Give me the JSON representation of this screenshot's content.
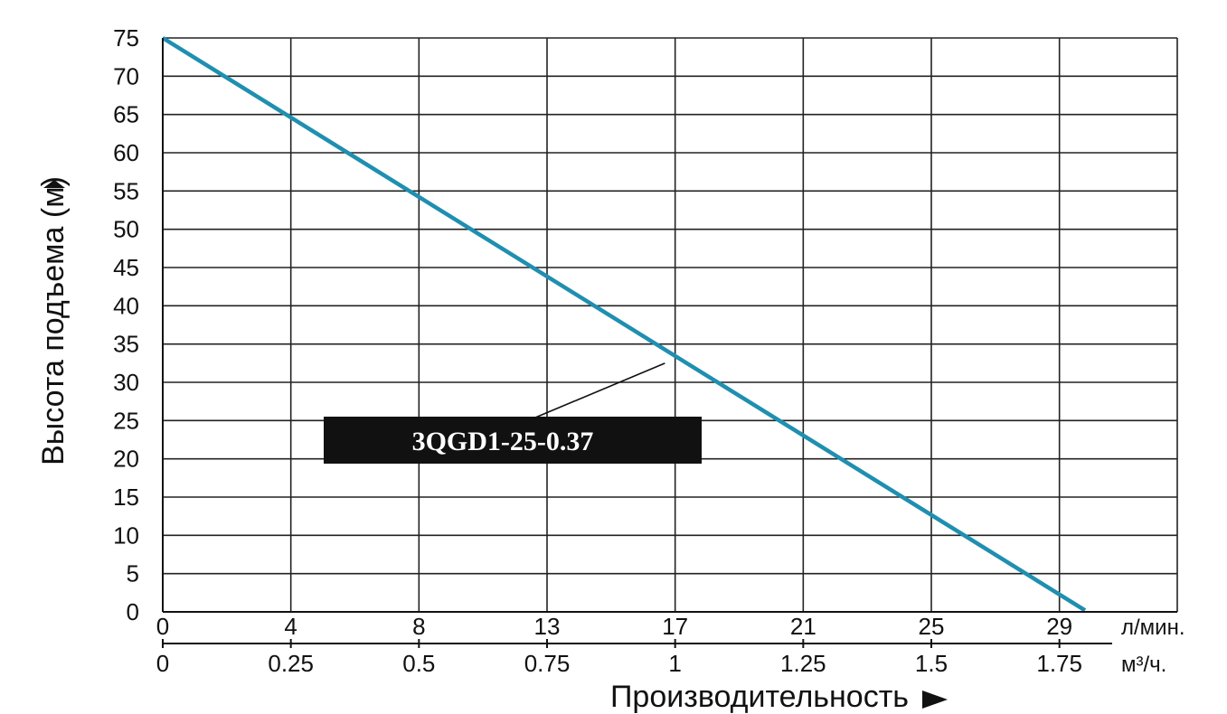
{
  "chart_data": {
    "type": "line",
    "ylabel": "Высота подъема (м)",
    "xlabel": "Производительность",
    "x_unit_primary": "л/мин.",
    "x_unit_secondary": "м³/ч.",
    "yticks": [
      "0",
      "5",
      "10",
      "15",
      "20",
      "25",
      "30",
      "35",
      "40",
      "45",
      "50",
      "55",
      "60",
      "65",
      "70",
      "75"
    ],
    "xticks_primary": [
      "0",
      "4",
      "8",
      "13",
      "17",
      "21",
      "25",
      "29"
    ],
    "xticks_secondary": [
      "0",
      "0.25",
      "0.5",
      "0.75",
      "1",
      "1.25",
      "1.5",
      "1.75"
    ],
    "ylim": [
      0,
      75
    ],
    "xlim_m3h": [
      0,
      1.98
    ],
    "grid": true,
    "series": [
      {
        "name": "3QGD1-25-0.37",
        "color": "#1f8fb0",
        "points_m3h": [
          [
            0,
            75
          ],
          [
            1.8,
            0.2
          ]
        ]
      }
    ],
    "annotation": {
      "text": "3QGD1-25-0.37",
      "points_to_m3h": [
        0.98,
        32.5
      ]
    }
  }
}
